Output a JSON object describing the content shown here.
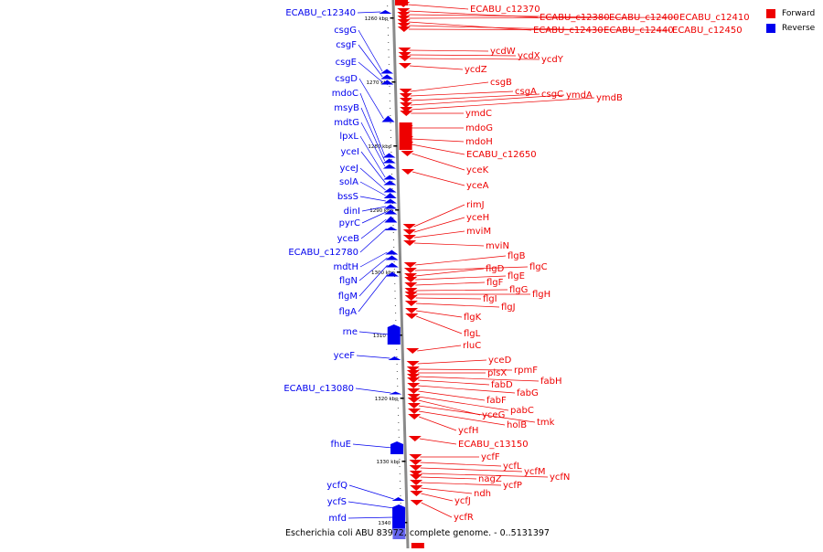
{
  "legend": {
    "forward_label": "Forward",
    "reverse_label": "Reverse",
    "forward_color": "#ee0000",
    "reverse_color": "#0000ee"
  },
  "caption": "Escherichia coli ABU 83972, complete genome. - 0..5131397",
  "axis_ticks": [
    "1260 kbp",
    "1270 kbp",
    "1280 kbp",
    "1290 kbp",
    "1300 kbp",
    "1310 kbp",
    "1320 kbp",
    "1330 kbp",
    "1340 kbp"
  ],
  "reverse_genes": [
    "ECABU_c12340",
    "csgG",
    "csgF",
    "csgE",
    "csgD",
    "mdoC",
    "msyB",
    "mdtG",
    "lpxL",
    "yceI",
    "yceJ",
    "solA",
    "bssS",
    "dinI",
    "pyrC",
    "yceB",
    "ECABU_c12780",
    "mdtH",
    "flgN",
    "flgM",
    "flgA",
    "rne",
    "yceF",
    "ECABU_c13080",
    "fhuE",
    "ycfQ",
    "ycfS",
    "mfd"
  ],
  "forward_genes": [
    "ECABU_c12370",
    "ECABU_c12380",
    "ECABU_c12400",
    "ECABU_c12410",
    "ECABU_c12430",
    "ECABU_c12440",
    "ECABU_c12450",
    "ycdW",
    "ycdX",
    "ycdY",
    "ycdZ",
    "csgB",
    "csgA",
    "csgC",
    "ymdA",
    "ymdB",
    "ymdC",
    "mdoG",
    "mdoH",
    "ECABU_c12650",
    "yceK",
    "yceA",
    "rimJ",
    "yceH",
    "mviM",
    "mviN",
    "flgB",
    "flgC",
    "flgD",
    "flgE",
    "flgF",
    "flgG",
    "flgH",
    "flgI",
    "flgJ",
    "flgK",
    "flgL",
    "rluC",
    "yceD",
    "rpmF",
    "plsX",
    "fabH",
    "fabD",
    "fabG",
    "fabF",
    "pabC",
    "yceG",
    "tmk",
    "holB",
    "ycfH",
    "ECABU_c13150",
    "ycfF",
    "ycfL",
    "ycfM",
    "ycfN",
    "nagZ",
    "ycfP",
    "ndh",
    "ycfJ",
    "ycfR"
  ]
}
